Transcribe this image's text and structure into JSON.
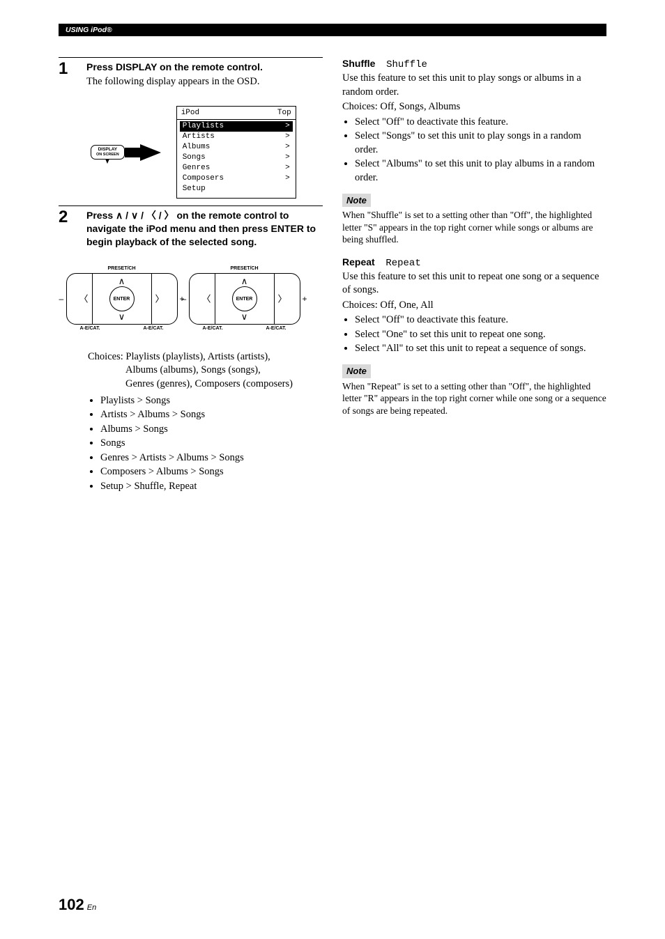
{
  "header": {
    "section": "USING iPod®"
  },
  "left": {
    "step1": {
      "num": "1",
      "title": "Press DISPLAY on the remote control.",
      "text": "The following display appears in the OSD.",
      "button": {
        "top": "DISPLAY",
        "bottom": "ON SCREEN"
      },
      "osd": {
        "head_left": "iPod",
        "head_right": "Top",
        "rows": [
          {
            "label": "Playlists",
            "arrow": ">",
            "selected": true
          },
          {
            "label": "Artists",
            "arrow": ">",
            "selected": false
          },
          {
            "label": "Albums",
            "arrow": ">",
            "selected": false
          },
          {
            "label": "Songs",
            "arrow": ">",
            "selected": false
          },
          {
            "label": "Genres",
            "arrow": ">",
            "selected": false
          },
          {
            "label": "Composers",
            "arrow": ">",
            "selected": false
          },
          {
            "label": "Setup",
            "arrow": "",
            "selected": false
          }
        ]
      }
    },
    "step2": {
      "num": "2",
      "title_pre": "Press ",
      "title_symbols": "∧ / ∨ / 〈 / 〉",
      "title_post": " on the remote control to navigate the iPod menu and then press ENTER to begin playback of the selected song.",
      "dial": {
        "top": "PRESET/CH",
        "center": "ENTER",
        "foot_l": "A-E/CAT.",
        "foot_r": "A-E/CAT.",
        "minus": "–",
        "plus": "+"
      },
      "choices_label": "Choices:",
      "choices_lines": [
        "Playlists (playlists), Artists (artists),",
        "Albums (albums), Songs (songs),",
        "Genres (genres), Composers (composers)"
      ],
      "browse": [
        "Playlists > Songs",
        "Artists > Albums > Songs",
        "Albums > Songs",
        "Songs",
        "Genres > Artists > Albums > Songs",
        "Composers > Albums > Songs",
        "Setup > Shuffle, Repeat"
      ]
    }
  },
  "right": {
    "shuffle": {
      "title": "Shuffle",
      "osd": "Shuffle",
      "desc": "Use this feature to set this unit to play songs or albums in a random order.",
      "choices": "Choices: Off, Songs, Albums",
      "opts": [
        "Select \"Off\" to deactivate this feature.",
        "Select \"Songs\" to set this unit to play songs in a random order.",
        "Select \"Albums\" to set this unit to play albums in a random order."
      ],
      "note_label": "Note",
      "note": "When \"Shuffle\" is set to a setting other than \"Off\", the highlighted letter \"S\" appears in the top right corner while songs or albums are being shuffled."
    },
    "repeat": {
      "title": "Repeat",
      "osd": "Repeat",
      "desc": "Use this feature to set this unit to repeat one song or a sequence of songs.",
      "choices": "Choices: Off, One, All",
      "opts": [
        "Select \"Off\" to deactivate this feature.",
        "Select \"One\" to set this unit to repeat one song.",
        "Select \"All\" to set this unit to repeat a sequence of songs."
      ],
      "note_label": "Note",
      "note": "When \"Repeat\" is set to a setting other than \"Off\", the highlighted letter \"R\" appears in the top right corner while one song or a sequence of songs are being repeated."
    }
  },
  "footer": {
    "page": "102",
    "lang": "En"
  }
}
